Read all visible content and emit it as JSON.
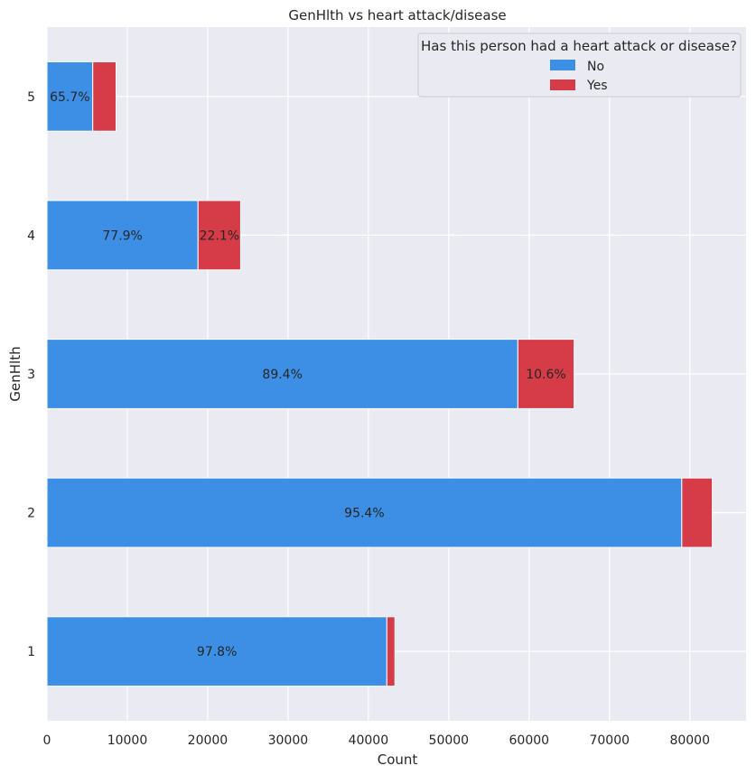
{
  "chart_data": {
    "type": "bar",
    "orientation": "horizontal",
    "stacked": true,
    "title": "GenHlth vs heart attack/disease",
    "xlabel": "Count",
    "ylabel": "GenHlth",
    "categories": [
      "1",
      "2",
      "3",
      "4",
      "5"
    ],
    "xlim": [
      0,
      87000
    ],
    "xticks": [
      0,
      10000,
      20000,
      30000,
      40000,
      50000,
      60000,
      70000,
      80000
    ],
    "grid": true,
    "legend": {
      "title": "Has this person had a heart attack or disease?",
      "placement": "top-right"
    },
    "series": [
      {
        "name": "No",
        "color": "#3d8fe5",
        "values": [
          42300,
          79000,
          58600,
          18800,
          5700
        ],
        "labels": [
          "97.8%",
          "95.4%",
          "89.4%",
          "77.9%",
          "65.7%"
        ]
      },
      {
        "name": "Yes",
        "color": "#d63c47",
        "values": [
          1000,
          3800,
          7000,
          5300,
          2900
        ],
        "labels": [
          "",
          "",
          "10.6%",
          "22.1%",
          ""
        ]
      }
    ]
  }
}
